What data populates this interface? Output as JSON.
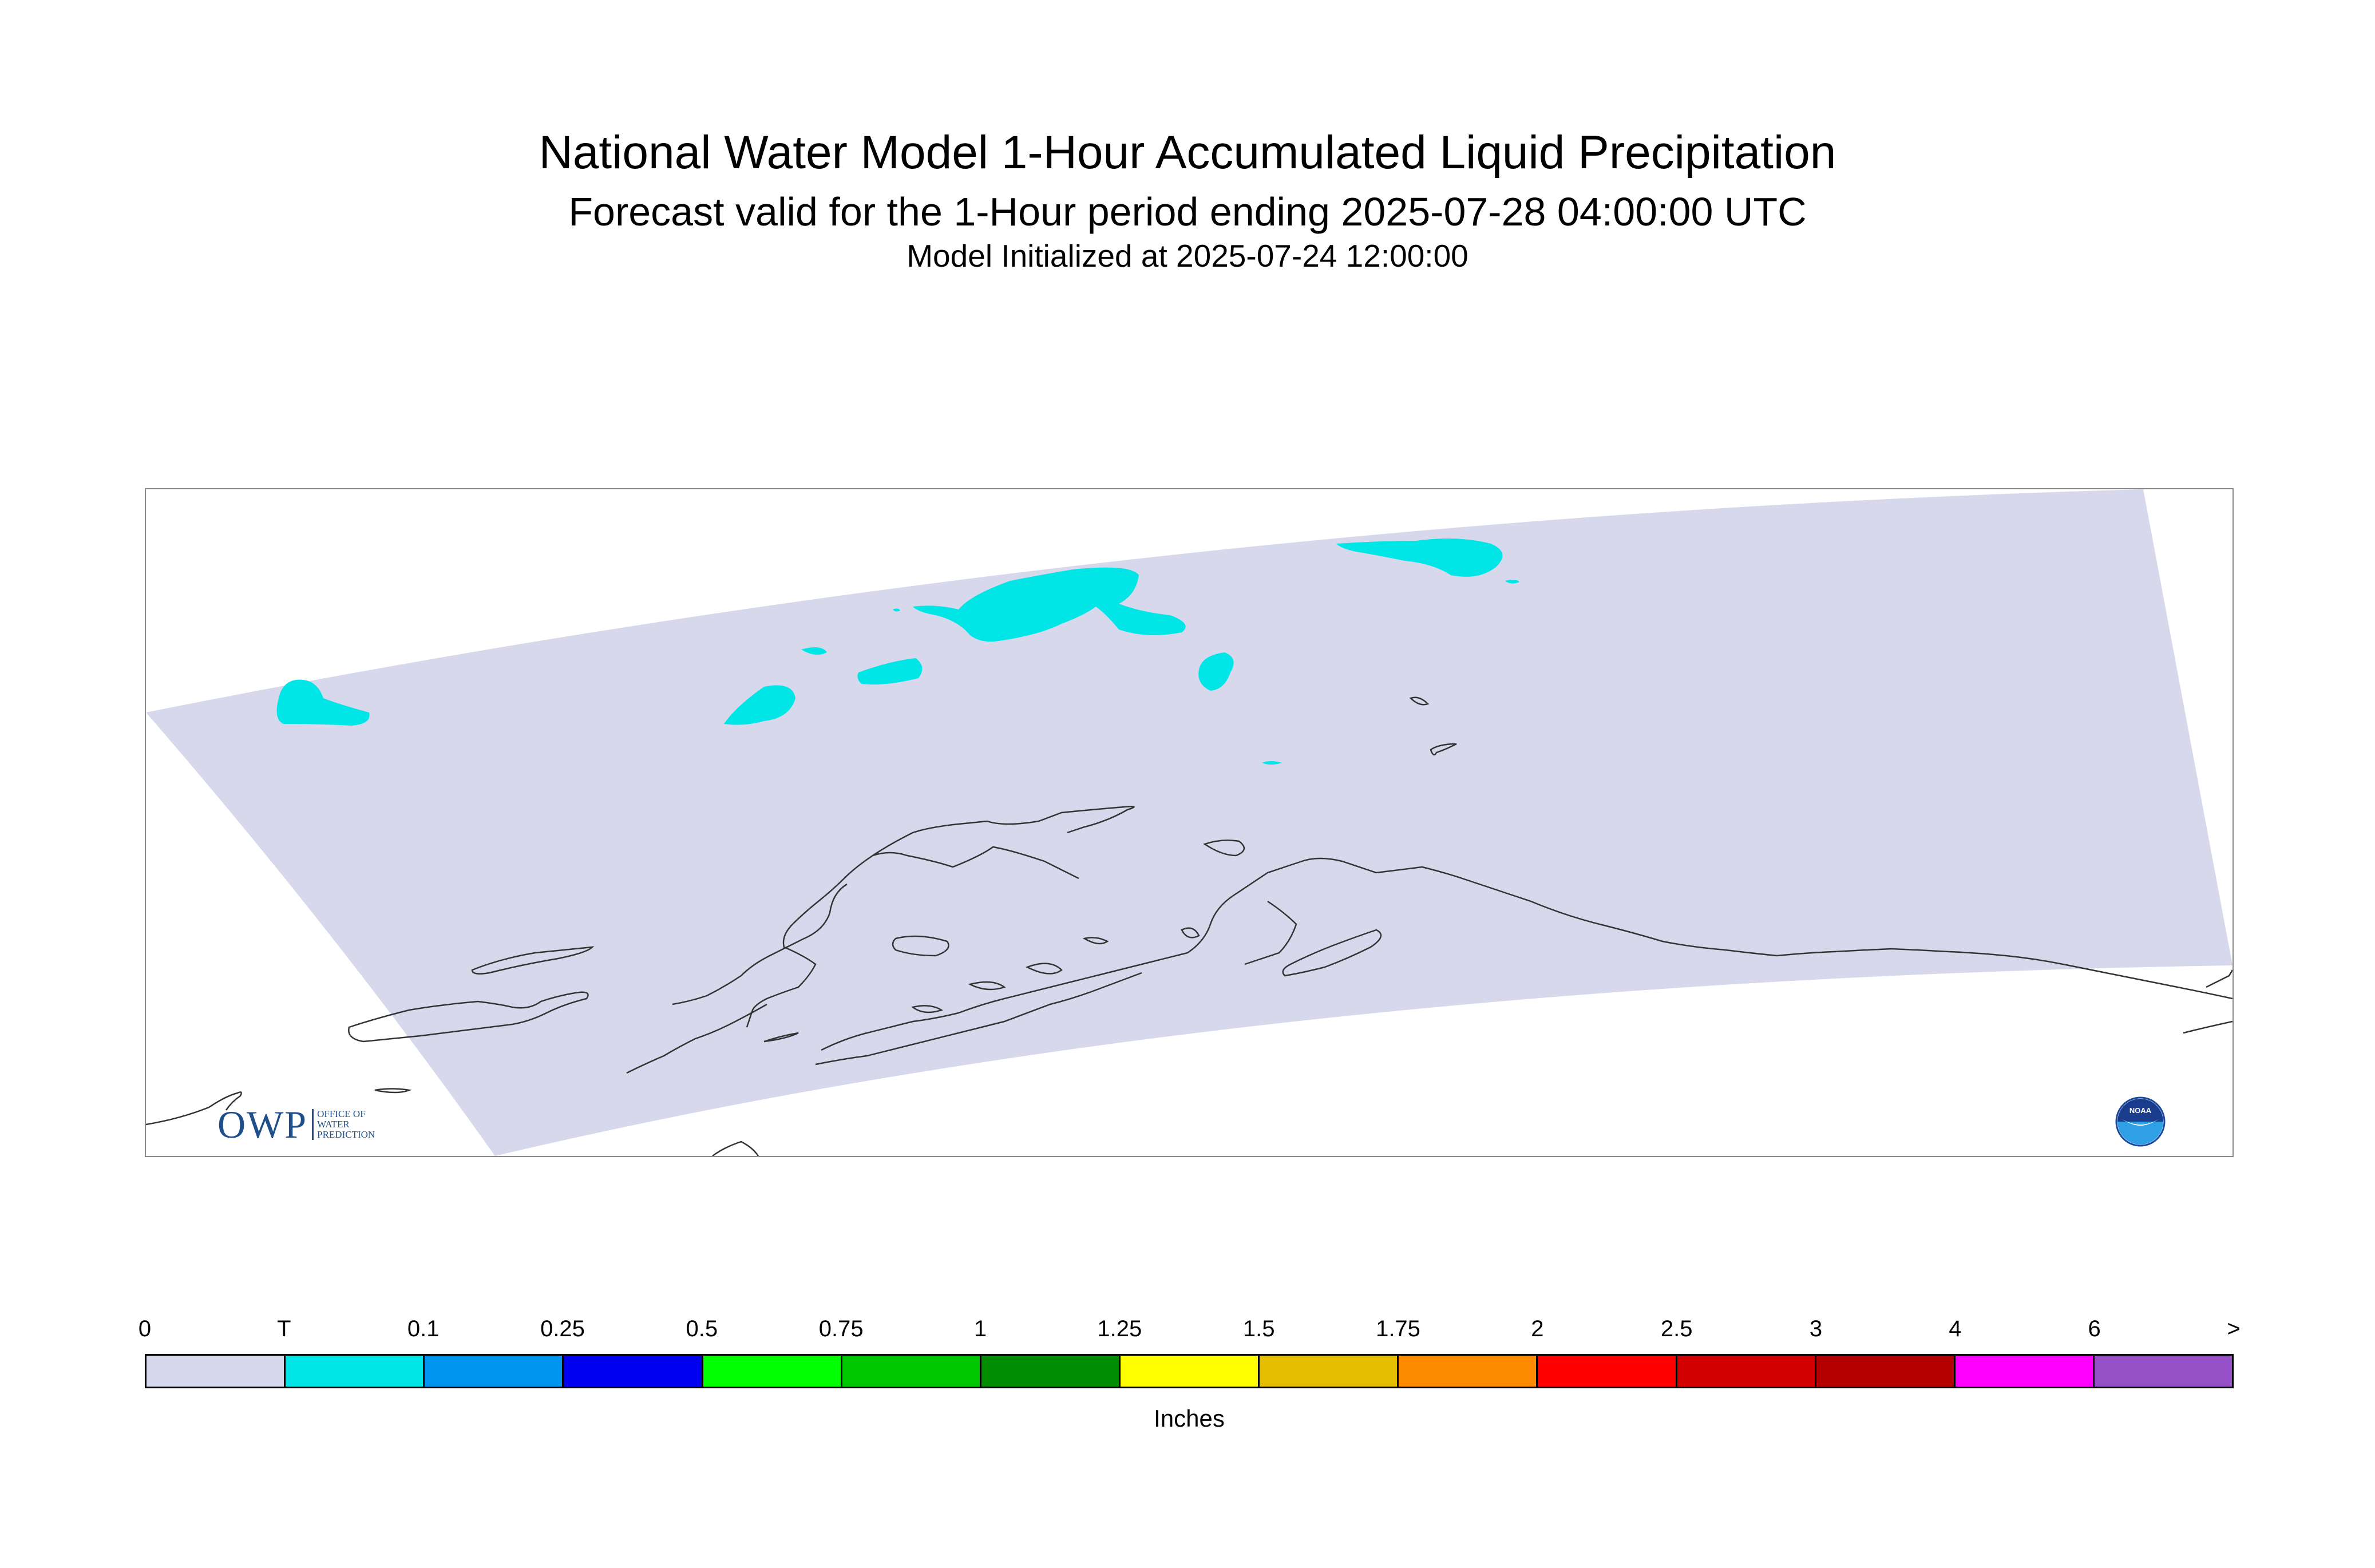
{
  "header": {
    "title": "National Water Model 1-Hour Accumulated Liquid Precipitation",
    "subtitle": "Forecast valid for the 1-Hour period ending 2025-07-28 04:00:00 UTC",
    "init_line": "Model Initialized at 2025-07-24 12:00:00"
  },
  "logos": {
    "owp_letters": "OWP",
    "owp_line1": "OFFICE OF",
    "owp_line2": "WATER",
    "owp_line3": "PREDICTION",
    "noaa_text": "NOAA"
  },
  "legend": {
    "units": "Inches",
    "ticks": [
      "0",
      "T",
      "0.1",
      "0.25",
      "0.5",
      "0.75",
      "1",
      "1.25",
      "1.5",
      "1.75",
      "2",
      "2.5",
      "3",
      "4",
      "6",
      ">"
    ],
    "colors": [
      "#d8d8ec",
      "#00e6e6",
      "#0096f0",
      "#0000f0",
      "#00ff00",
      "#00c800",
      "#008c00",
      "#ffff00",
      "#e6be00",
      "#ff8c00",
      "#ff0000",
      "#d20000",
      "#b40000",
      "#ff00ff",
      "#9650c8"
    ]
  },
  "map": {
    "domain_color": "#d8d8ec",
    "trace_color": "#00e6e6",
    "coastline_color": "#333333"
  }
}
